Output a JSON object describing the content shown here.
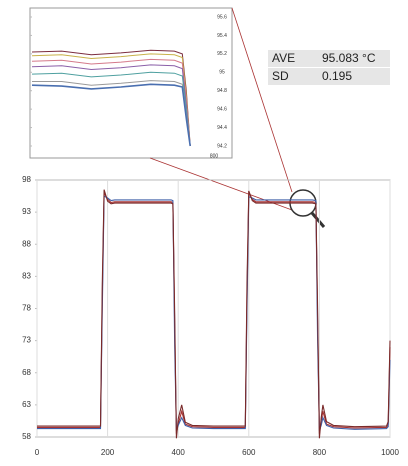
{
  "chart_data": [
    {
      "type": "line",
      "x": [
        0,
        180,
        185,
        190,
        200,
        210,
        220,
        380,
        385,
        390,
        395,
        400,
        410,
        420,
        440,
        500,
        580,
        590,
        595,
        600,
        610,
        620,
        780,
        790,
        795,
        800,
        805,
        810,
        820,
        840,
        900,
        990,
        995,
        1000
      ],
      "series": [
        {
          "color": "#a83232",
          "values": [
            59.5,
            59.5,
            80,
            96,
            95,
            94.5,
            94.6,
            94.6,
            94.5,
            75,
            58.5,
            60,
            62,
            60,
            59.6,
            59.5,
            59.5,
            59.5,
            80,
            96,
            95,
            94.6,
            94.6,
            94.5,
            76,
            58.5,
            60.5,
            62,
            60,
            59.6,
            59.4,
            59.5,
            60,
            72
          ]
        },
        {
          "color": "#3f5fa8",
          "values": [
            59.3,
            59.3,
            78,
            95.5,
            95.2,
            94.8,
            94.9,
            94.9,
            94.8,
            72,
            59,
            59.8,
            61,
            59.8,
            59.4,
            59.3,
            59.3,
            59.3,
            78,
            95.4,
            95.2,
            94.9,
            94.9,
            94.8,
            73,
            59,
            59.8,
            61,
            59.8,
            59.4,
            59.2,
            59.3,
            59.6,
            70
          ]
        },
        {
          "color": "#7a2a2a",
          "values": [
            59.7,
            59.7,
            82,
            96.5,
            94.7,
            94.3,
            94.4,
            94.4,
            94.3,
            77,
            57.8,
            60.8,
            63,
            60.3,
            59.8,
            59.7,
            59.7,
            59.7,
            82,
            96.3,
            94.8,
            94.4,
            94.4,
            94.3,
            78,
            57.8,
            61,
            63,
            60.4,
            59.8,
            59.6,
            59.7,
            60.4,
            73
          ]
        }
      ],
      "xlim": [
        0,
        1000
      ],
      "xticks": [
        0,
        200,
        400,
        600,
        800,
        1000
      ],
      "ylim": [
        58,
        98
      ],
      "yticks": [
        98,
        93,
        88,
        83,
        78,
        73,
        68,
        63,
        58
      ],
      "grid": true,
      "stats": [
        {
          "name": "AVE",
          "text": "95.083 °C"
        },
        {
          "name": "SD",
          "text": "0.195"
        }
      ]
    },
    {
      "type": "line",
      "x": [
        710,
        725,
        740,
        755,
        770,
        782,
        786,
        788,
        790
      ],
      "series": [
        {
          "color": "#7b2d3f",
          "values": [
            95.22,
            95.23,
            95.19,
            95.21,
            95.24,
            95.23,
            95.2,
            94.8,
            94.2
          ]
        },
        {
          "color": "#c9b24a",
          "values": [
            95.18,
            95.19,
            95.15,
            95.17,
            95.2,
            95.19,
            95.16,
            94.75,
            94.2
          ]
        },
        {
          "color": "#d47a8a",
          "values": [
            95.12,
            95.13,
            95.09,
            95.11,
            95.14,
            95.13,
            95.1,
            94.7,
            94.2
          ]
        },
        {
          "color": "#8a5fa8",
          "values": [
            95.06,
            95.07,
            95.03,
            95.05,
            95.08,
            95.07,
            95.04,
            94.65,
            94.2
          ]
        },
        {
          "color": "#4fa0a0",
          "values": [
            94.98,
            94.99,
            94.95,
            94.97,
            95.0,
            94.99,
            94.96,
            94.6,
            94.2
          ]
        },
        {
          "color": "#999999",
          "values": [
            94.9,
            94.9,
            94.86,
            94.88,
            94.91,
            94.9,
            94.87,
            94.55,
            94.2
          ]
        },
        {
          "color": "#4a6fb0",
          "values": [
            94.86,
            94.85,
            94.82,
            94.84,
            94.87,
            94.86,
            94.84,
            94.5,
            94.2
          ]
        }
      ],
      "xlim": [
        710,
        800
      ],
      "xticks": [
        800
      ],
      "ylim": [
        94.2,
        95.6
      ],
      "yticks": [
        95.6,
        95.4,
        95.2,
        95,
        94.8,
        94.6,
        94.4,
        94.2
      ],
      "grid": false
    }
  ]
}
